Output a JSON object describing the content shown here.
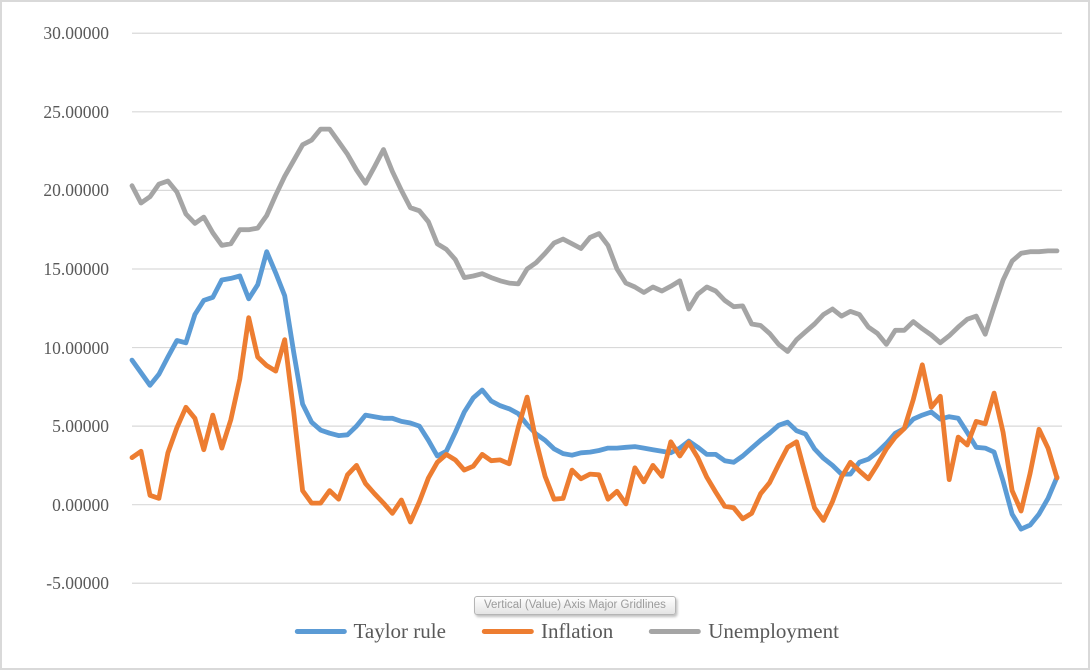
{
  "tooltip": {
    "text": "Vertical (Value) Axis Major Gridlines"
  },
  "colors": {
    "taylor_rule": "#5B9BD5",
    "inflation": "#ED7D31",
    "unemployment": "#A5A5A5",
    "gridline": "#D9D9D9",
    "axis_text": "#595959",
    "chart_border": "#D9D9D9"
  },
  "chart_data": {
    "type": "line",
    "title": "",
    "xlabel": "",
    "ylabel": "",
    "x_axis_labels_visible": false,
    "ylim": [
      -5,
      30
    ],
    "y_tick_step": 5,
    "grid": "horizontal-major",
    "legend_position": "bottom",
    "y_ticks": [
      "30.00000",
      "25.00000",
      "20.00000",
      "15.00000",
      "10.00000",
      "5.00000",
      "0.00000",
      "-5.00000"
    ],
    "y_tick_values": [
      30,
      25,
      20,
      15,
      10,
      5,
      0,
      -5
    ],
    "series": [
      {
        "name": "Taylor rule",
        "color": "#5B9BD5",
        "values": [
          9.2,
          8.4,
          7.6,
          8.3,
          9.4,
          10.45,
          10.3,
          12.1,
          13.0,
          13.2,
          14.3,
          14.4,
          14.55,
          13.1,
          14.0,
          16.1,
          14.75,
          13.3,
          9.7,
          6.4,
          5.25,
          4.75,
          4.55,
          4.4,
          4.45,
          5.0,
          5.7,
          5.6,
          5.5,
          5.5,
          5.3,
          5.2,
          5.0,
          4.1,
          3.1,
          3.4,
          4.6,
          5.9,
          6.8,
          7.3,
          6.6,
          6.3,
          6.1,
          5.8,
          5.1,
          4.5,
          4.1,
          3.55,
          3.25,
          3.15,
          3.3,
          3.35,
          3.45,
          3.6,
          3.6,
          3.65,
          3.7,
          3.6,
          3.5,
          3.4,
          3.3,
          3.6,
          4.05,
          3.65,
          3.2,
          3.2,
          2.8,
          2.7,
          3.1,
          3.6,
          4.1,
          4.55,
          5.05,
          5.25,
          4.7,
          4.5,
          3.55,
          2.95,
          2.5,
          1.95,
          1.95,
          2.7,
          2.9,
          3.35,
          3.9,
          4.55,
          4.85,
          5.45,
          5.7,
          5.9,
          5.45,
          5.6,
          5.5,
          4.6,
          3.65,
          3.6,
          3.35,
          1.5,
          -0.6,
          -1.55,
          -1.3,
          -0.6,
          0.4,
          1.75
        ]
      },
      {
        "name": "Inflation",
        "color": "#ED7D31",
        "values": [
          3.0,
          3.4,
          0.6,
          0.4,
          3.3,
          4.9,
          6.2,
          5.5,
          3.5,
          5.7,
          3.6,
          5.4,
          8.0,
          11.9,
          9.4,
          8.85,
          8.5,
          10.5,
          5.9,
          0.9,
          0.1,
          0.1,
          0.9,
          0.35,
          1.9,
          2.5,
          1.35,
          0.7,
          0.1,
          -0.55,
          0.3,
          -1.1,
          0.2,
          1.7,
          2.7,
          3.2,
          2.85,
          2.2,
          2.45,
          3.2,
          2.8,
          2.85,
          2.6,
          4.9,
          6.85,
          4.05,
          1.8,
          0.35,
          0.4,
          2.2,
          1.65,
          1.95,
          1.9,
          0.35,
          0.85,
          0.05,
          2.35,
          1.45,
          2.5,
          1.8,
          4.0,
          3.1,
          3.95,
          3.0,
          1.75,
          0.8,
          -0.1,
          -0.2,
          -0.9,
          -0.55,
          0.7,
          1.4,
          2.55,
          3.65,
          4.0,
          1.9,
          -0.2,
          -1.0,
          0.2,
          1.75,
          2.7,
          2.15,
          1.65,
          2.55,
          3.55,
          4.3,
          4.85,
          6.7,
          8.9,
          6.2,
          6.9,
          1.6,
          4.3,
          3.8,
          5.3,
          5.15,
          7.1,
          4.6,
          0.9,
          -0.4,
          2.0,
          4.8,
          3.6,
          1.7
        ]
      },
      {
        "name": "Unemployment",
        "color": "#A5A5A5",
        "values": [
          20.3,
          19.2,
          19.6,
          20.4,
          20.6,
          19.9,
          18.5,
          17.9,
          18.3,
          17.3,
          16.5,
          16.6,
          17.5,
          17.5,
          17.6,
          18.4,
          19.7,
          20.9,
          21.9,
          22.9,
          23.2,
          23.9,
          23.9,
          23.1,
          22.3,
          21.3,
          20.45,
          21.5,
          22.6,
          21.2,
          20.0,
          18.9,
          18.7,
          18.0,
          16.6,
          16.25,
          15.6,
          14.45,
          14.55,
          14.7,
          14.45,
          14.25,
          14.1,
          14.05,
          15.0,
          15.4,
          16.0,
          16.65,
          16.9,
          16.6,
          16.3,
          17.0,
          17.25,
          16.5,
          15.0,
          14.1,
          13.85,
          13.5,
          13.85,
          13.6,
          13.9,
          14.25,
          12.45,
          13.4,
          13.85,
          13.6,
          13.0,
          12.6,
          12.65,
          11.5,
          11.4,
          10.9,
          10.2,
          9.75,
          10.5,
          11.0,
          11.5,
          12.1,
          12.45,
          12.0,
          12.3,
          12.1,
          11.3,
          10.9,
          10.2,
          11.1,
          11.1,
          11.65,
          11.2,
          10.8,
          10.3,
          10.75,
          11.3,
          11.8,
          12.0,
          10.85,
          12.6,
          14.3,
          15.5,
          16.0,
          16.1,
          16.1,
          16.15,
          16.15
        ]
      }
    ]
  }
}
